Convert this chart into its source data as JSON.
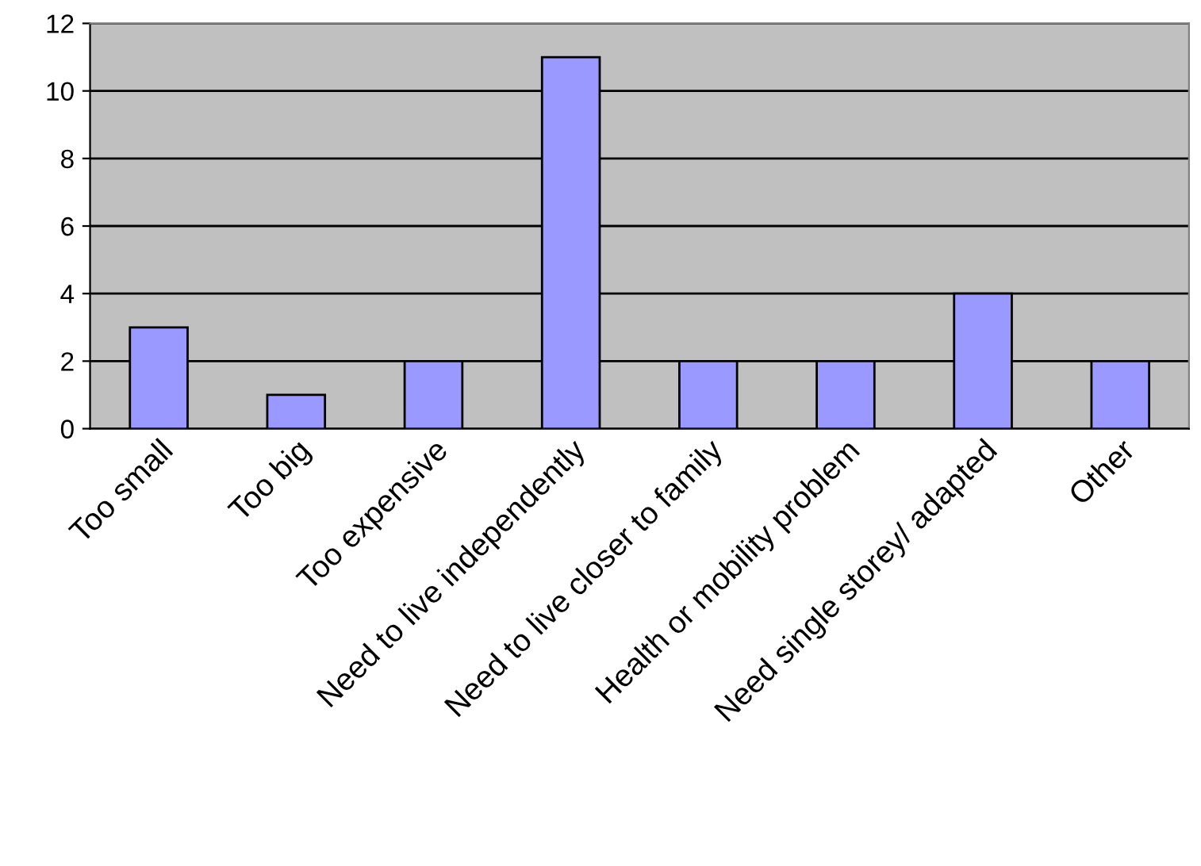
{
  "chart_data": {
    "type": "bar",
    "categories": [
      "Too small",
      "Too big",
      "Too expensive",
      "Need to live independently",
      "Need to live closer to family",
      "Health or mobility problem",
      "Need single storey/ adapted",
      "Other"
    ],
    "values": [
      3,
      1,
      2,
      11,
      2,
      2,
      4,
      2
    ],
    "color": "#9999ff",
    "ylim": [
      0,
      12
    ],
    "yticks": [
      0,
      2,
      4,
      6,
      8,
      10,
      12
    ],
    "grid": "y",
    "legend": false
  }
}
